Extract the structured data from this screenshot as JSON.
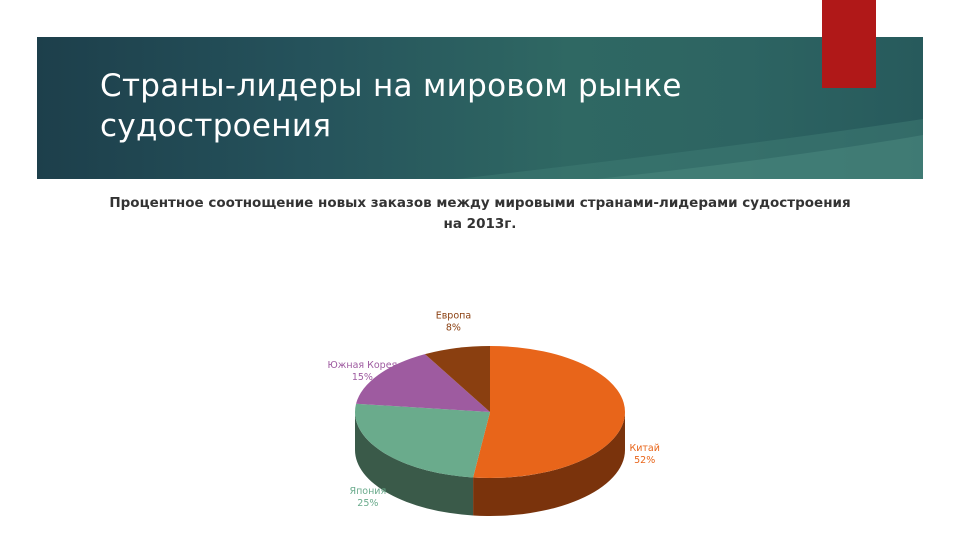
{
  "slide": {
    "title": "Страны-лидеры на мировом рынке судостроения"
  },
  "colors": {
    "banner": "#25525b",
    "accent": "#b01818"
  },
  "chart_data": {
    "type": "pie",
    "style": "3d",
    "title": "Процентное соотнощение новых заказов между мировыми странами-лидерами судостроения на 2013г.",
    "slices": [
      {
        "name": "Китай",
        "value": 52,
        "label": "52%",
        "color": "#e8651a",
        "side_color": "#7a330c"
      },
      {
        "name": "Япония",
        "value": 25,
        "label": "25%",
        "color": "#6aab8c",
        "side_color": "#3a5a49"
      },
      {
        "name": "Южная Корея",
        "value": 15,
        "label": "15%",
        "color": "#9e5ba0",
        "side_color": "#55305a"
      },
      {
        "name": "Европа",
        "value": 8,
        "label": "8%",
        "color": "#8a3f10",
        "side_color": "#4a2008"
      }
    ]
  }
}
